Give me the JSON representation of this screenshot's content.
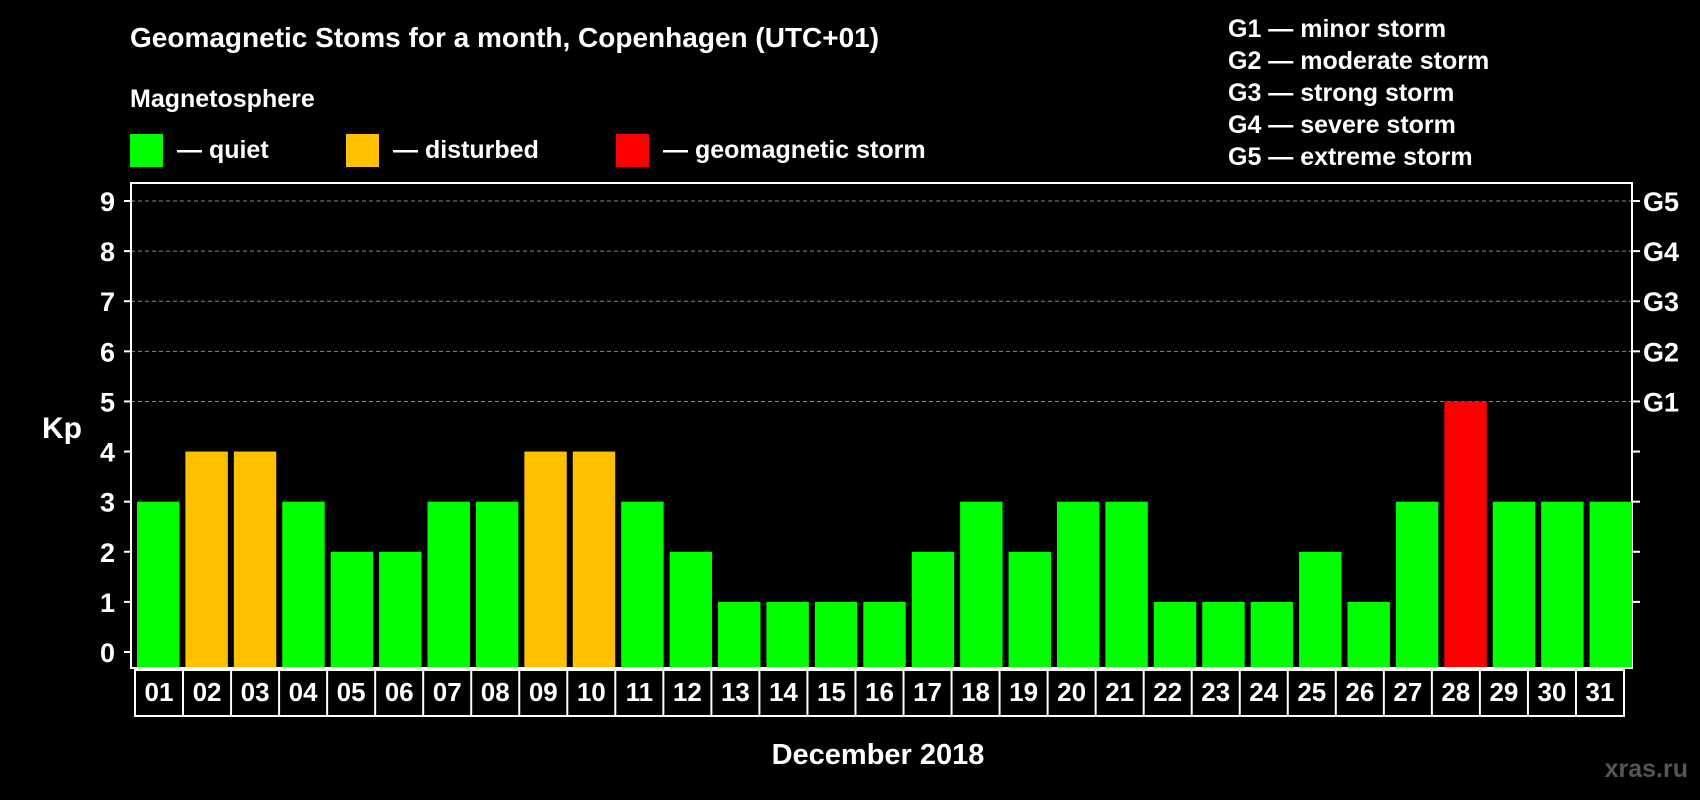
{
  "title": "Geomagnetic Stoms for a month, Copenhagen (UTC+01)",
  "legend": {
    "heading": "Magnetosphere",
    "items": [
      {
        "label": "— quiet",
        "color": "#00ff00"
      },
      {
        "label": "— disturbed",
        "color": "#ffc000"
      },
      {
        "label": "— geomagnetic storm",
        "color": "#ff0000"
      }
    ]
  },
  "g_scale_legend": [
    "G1 — minor storm",
    "G2 — moderate storm",
    "G3 — strong storm",
    "G4 — severe storm",
    "G5 — extreme storm"
  ],
  "watermark": "xras.ru",
  "chart_data": {
    "type": "bar",
    "title": "Geomagnetic Stoms for a month, Copenhagen (UTC+01)",
    "xlabel": "December 2018",
    "ylabel": "Kp",
    "ylim": [
      0,
      9
    ],
    "yticks": [
      0,
      1,
      2,
      3,
      4,
      5,
      6,
      7,
      8,
      9
    ],
    "right_axis_labels": [
      {
        "kp": 5,
        "label": "G1"
      },
      {
        "kp": 6,
        "label": "G2"
      },
      {
        "kp": 7,
        "label": "G3"
      },
      {
        "kp": 8,
        "label": "G4"
      },
      {
        "kp": 9,
        "label": "G5"
      }
    ],
    "grid": "dashed horizontal",
    "categories": [
      "01",
      "02",
      "03",
      "04",
      "05",
      "06",
      "07",
      "08",
      "09",
      "10",
      "11",
      "12",
      "13",
      "14",
      "15",
      "16",
      "17",
      "18",
      "19",
      "20",
      "21",
      "22",
      "23",
      "24",
      "25",
      "26",
      "27",
      "28",
      "29",
      "30",
      "31"
    ],
    "values": [
      3,
      4,
      4,
      3,
      2,
      2,
      3,
      3,
      4,
      4,
      3,
      2,
      1,
      1,
      1,
      1,
      2,
      3,
      2,
      3,
      3,
      1,
      1,
      1,
      2,
      1,
      3,
      5,
      3,
      3,
      3
    ],
    "color_rule": {
      "quiet": "#00ff00",
      "disturbed": "#ffc000",
      "storm": "#ff0000"
    }
  }
}
